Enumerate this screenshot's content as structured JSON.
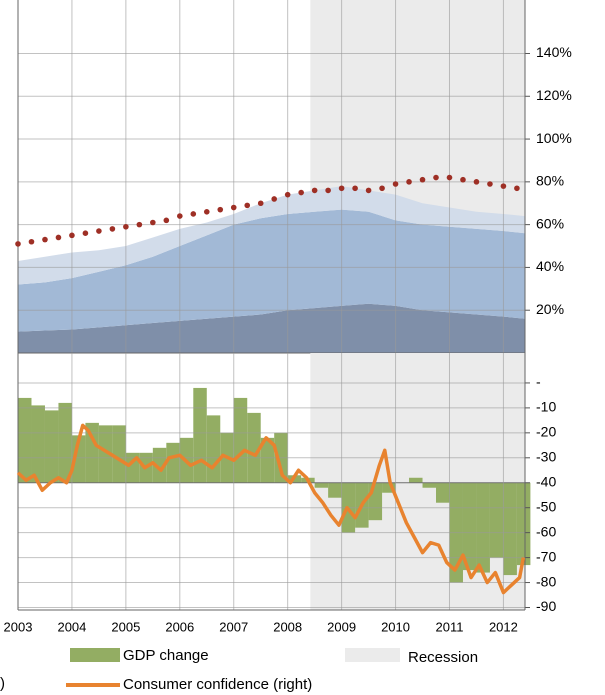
{
  "chart_data": [
    {
      "type": "combo",
      "xlim": [
        2003,
        2012.4
      ],
      "xticks": [
        2003,
        2004,
        2005,
        2006,
        2007,
        2008,
        2009,
        2010,
        2011,
        2012
      ],
      "ylim": [
        0,
        165
      ],
      "yticks": [
        {
          "value": 20,
          "label": "20%"
        },
        {
          "value": 40,
          "label": "40%"
        },
        {
          "value": 60,
          "label": "60%"
        },
        {
          "value": 80,
          "label": "80%"
        },
        {
          "value": 100,
          "label": "100%"
        },
        {
          "value": 120,
          "label": "120%"
        },
        {
          "value": 140,
          "label": "140%"
        }
      ],
      "grid": true,
      "recession": {
        "name": "Recession",
        "color": "#ebebeb",
        "x": [
          2008.42,
          2012.4
        ]
      },
      "series": [
        {
          "type": "area",
          "color": "#7f8fa9",
          "x": [
            2003,
            2003.5,
            2004,
            2004.5,
            2005,
            2005.5,
            2006,
            2006.5,
            2007,
            2007.5,
            2008,
            2008.5,
            2009,
            2009.5,
            2010,
            2010.5,
            2011,
            2011.5,
            2012,
            2012.4
          ],
          "values": [
            10,
            10.5,
            11,
            12,
            13,
            14,
            15,
            16,
            17,
            18,
            20,
            21,
            22,
            23,
            22,
            20,
            19,
            18,
            17,
            16
          ]
        },
        {
          "type": "area",
          "color": "#a2b9d6",
          "x": [
            2003,
            2003.5,
            2004,
            2004.5,
            2005,
            2005.5,
            2006,
            2006.5,
            2007,
            2007.5,
            2008,
            2008.5,
            2009,
            2009.5,
            2010,
            2010.5,
            2011,
            2011.5,
            2012,
            2012.4
          ],
          "values": [
            22,
            22.5,
            24,
            26,
            28,
            31,
            35,
            39,
            43,
            45,
            45,
            45,
            45,
            43,
            40,
            40,
            40,
            40,
            40,
            40
          ]
        },
        {
          "type": "area",
          "color": "#d2dcea",
          "x": [
            2003,
            2003.5,
            2004,
            2004.5,
            2005,
            2005.5,
            2006,
            2006.5,
            2007,
            2007.5,
            2008,
            2008.5,
            2009,
            2009.5,
            2010,
            2010.5,
            2011,
            2011.5,
            2012,
            2012.4
          ],
          "values": [
            11,
            12,
            12,
            10,
            9,
            9,
            8,
            6,
            5,
            7,
            9,
            10,
            11,
            10,
            12,
            10,
            9,
            8,
            8,
            8
          ]
        },
        {
          "type": "dots",
          "color": "#9e2f25",
          "x": [
            2003,
            2003.25,
            2003.5,
            2003.75,
            2004,
            2004.25,
            2004.5,
            2004.75,
            2005,
            2005.25,
            2005.5,
            2005.75,
            2006,
            2006.25,
            2006.5,
            2006.75,
            2007,
            2007.25,
            2007.5,
            2007.75,
            2008,
            2008.25,
            2008.5,
            2008.75,
            2009,
            2009.25,
            2009.5,
            2009.75,
            2010,
            2010.25,
            2010.5,
            2010.75,
            2011,
            2011.25,
            2011.5,
            2011.75,
            2012,
            2012.25
          ],
          "values": [
            51,
            52,
            53,
            54,
            55,
            56,
            57,
            58,
            59,
            60,
            61,
            62,
            64,
            65,
            66,
            67,
            68,
            69,
            70,
            72,
            74,
            75,
            76,
            76,
            77,
            77,
            76,
            77,
            79,
            80,
            81,
            82,
            82,
            81,
            80,
            79,
            78,
            77
          ]
        }
      ]
    },
    {
      "type": "combo",
      "xlim": [
        2003,
        2012.4
      ],
      "xticks": [
        2003,
        2004,
        2005,
        2006,
        2007,
        2008,
        2009,
        2010,
        2011,
        2012
      ],
      "ylim": [
        -91,
        12
      ],
      "yticks": [
        {
          "value": 0,
          "label": "-"
        },
        -10,
        -20,
        -30,
        -40,
        -50,
        -60,
        -70,
        -80,
        -90
      ],
      "grid": true,
      "bar_baseline": -40,
      "clipped_label": ")",
      "series": [
        {
          "type": "bar",
          "name": "GDP change",
          "color": "#93ad63",
          "x": [
            2003,
            2003.25,
            2003.5,
            2003.75,
            2004,
            2004.25,
            2004.5,
            2004.75,
            2005,
            2005.25,
            2005.5,
            2005.75,
            2006,
            2006.25,
            2006.5,
            2006.75,
            2007,
            2007.25,
            2007.5,
            2007.75,
            2008,
            2008.25,
            2008.5,
            2008.75,
            2009,
            2009.25,
            2009.5,
            2009.75,
            2010,
            2010.25,
            2010.5,
            2010.75,
            2011,
            2011.25,
            2011.5,
            2011.75,
            2012,
            2012.25
          ],
          "values": [
            -6,
            -9,
            -11,
            -8,
            -21,
            -16,
            -17,
            -17,
            -28,
            -28,
            -26,
            -24,
            -22,
            -2,
            -13,
            -20,
            -6,
            -12,
            -22,
            -20,
            -37,
            -38,
            -42,
            -46,
            -60,
            -58,
            -55,
            -44,
            -40,
            -38,
            -42,
            -48,
            -80,
            -75,
            -76,
            -70,
            -77,
            -73
          ]
        },
        {
          "type": "line",
          "name": "Consumer confidence (right)",
          "color": "#e8832f",
          "x": [
            2003,
            2003.15,
            2003.3,
            2003.45,
            2003.6,
            2003.75,
            2003.9,
            2004.0,
            2004.1,
            2004.2,
            2004.3,
            2004.45,
            2004.6,
            2004.75,
            2004.9,
            2005.05,
            2005.2,
            2005.35,
            2005.5,
            2005.65,
            2005.8,
            2006.0,
            2006.2,
            2006.4,
            2006.6,
            2006.8,
            2007.0,
            2007.2,
            2007.4,
            2007.6,
            2007.75,
            2007.9,
            2008.05,
            2008.2,
            2008.35,
            2008.5,
            2008.65,
            2008.8,
            2008.95,
            2009.1,
            2009.25,
            2009.4,
            2009.55,
            2009.7,
            2009.8,
            2009.9,
            2010.05,
            2010.2,
            2010.35,
            2010.5,
            2010.65,
            2010.8,
            2010.95,
            2011.1,
            2011.25,
            2011.4,
            2011.55,
            2011.7,
            2011.85,
            2012.0,
            2012.15,
            2012.3,
            2012.37
          ],
          "values": [
            -36,
            -39,
            -37,
            -43,
            -40,
            -38,
            -40,
            -35,
            -25,
            -17,
            -19,
            -25,
            -27,
            -29,
            -31,
            -33,
            -30,
            -34,
            -32,
            -35,
            -30,
            -29,
            -33,
            -31,
            -34,
            -29,
            -31,
            -27,
            -29,
            -22,
            -25,
            -37,
            -40,
            -35,
            -38,
            -44,
            -48,
            -53,
            -57,
            -50,
            -54,
            -48,
            -44,
            -33,
            -27,
            -40,
            -48,
            -56,
            -62,
            -68,
            -64,
            -65,
            -72,
            -75,
            -69,
            -78,
            -73,
            -80,
            -76,
            -84,
            -81,
            -78,
            -70
          ]
        }
      ]
    }
  ]
}
